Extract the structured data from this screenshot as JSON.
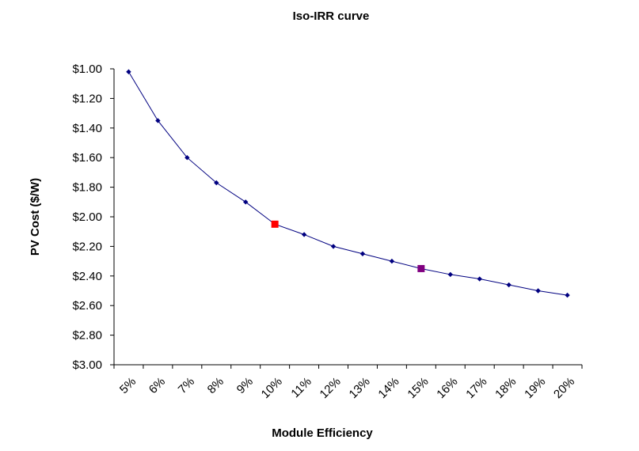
{
  "chart_data": {
    "type": "line",
    "title": "Iso-IRR curve",
    "xlabel": "Module Efficiency",
    "ylabel": "PV Cost ($/W)",
    "categories": [
      "5%",
      "6%",
      "7%",
      "8%",
      "9%",
      "10%",
      "11%",
      "12%",
      "13%",
      "14%",
      "15%",
      "16%",
      "17%",
      "18%",
      "19%",
      "20%"
    ],
    "y_tick_labels": [
      "$1.00",
      "$1.20",
      "$1.40",
      "$1.60",
      "$1.80",
      "$2.00",
      "$2.20",
      "$2.40",
      "$2.60",
      "$2.80",
      "$3.00"
    ],
    "ylim": [
      1.0,
      3.0
    ],
    "y_reversed": true,
    "grid": false,
    "legend": "none",
    "series": [
      {
        "color": "#000080",
        "values": [
          1.02,
          1.35,
          1.6,
          1.77,
          1.9,
          2.05,
          2.12,
          2.2,
          2.25,
          2.3,
          2.35,
          2.39,
          2.42,
          2.46,
          2.5,
          2.53
        ]
      }
    ],
    "highlighted_points": [
      {
        "category": "10%",
        "value": 2.05,
        "color": "#ff0000"
      },
      {
        "category": "15%",
        "value": 2.35,
        "color": "#800080"
      }
    ]
  }
}
